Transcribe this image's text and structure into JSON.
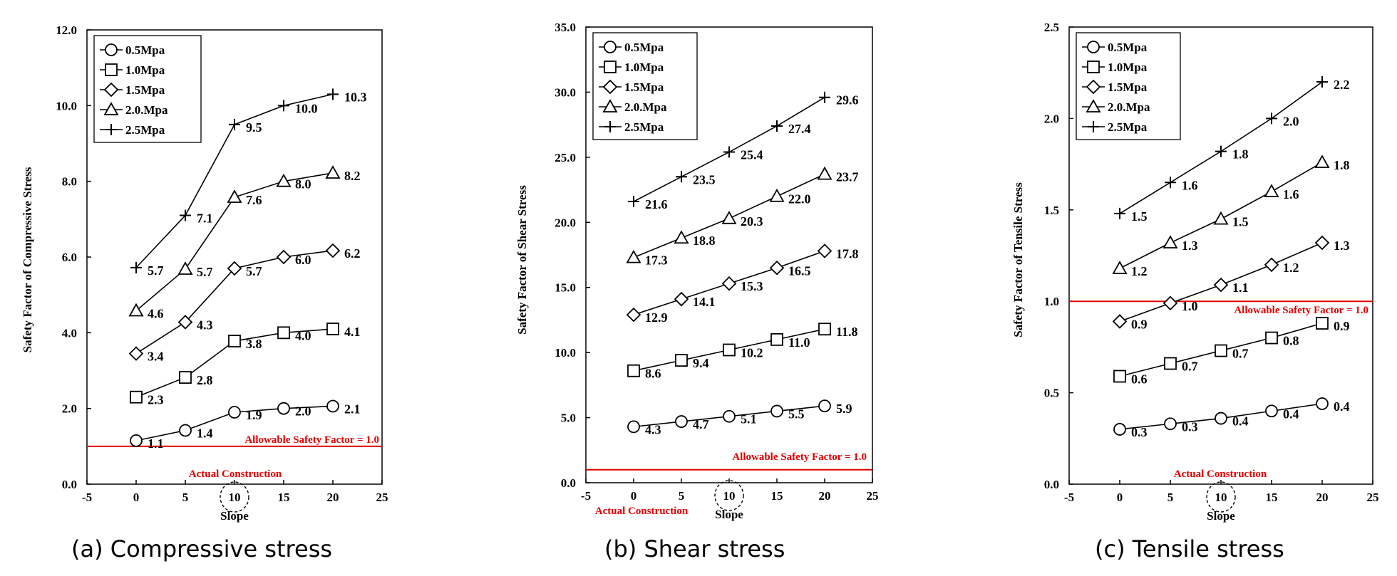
{
  "captions": [
    "(a) Compressive stress",
    "(b) Shear stress",
    "(c) Tensile stress"
  ],
  "chart_data": [
    {
      "type": "line",
      "title": "",
      "xlabel": "Slope",
      "ylabel": "Safety Factor of  Compressive Stress",
      "xlim": [
        -5,
        25
      ],
      "ylim": [
        0,
        12
      ],
      "xticks": [
        -5,
        0,
        5,
        10,
        15,
        20,
        25
      ],
      "xtick_labels": [
        "-5",
        "0",
        "5",
        "10",
        "15",
        "20",
        "25"
      ],
      "yticks": [
        0,
        2,
        4,
        6,
        8,
        10,
        12
      ],
      "ytick_labels": [
        "0.0",
        "2.0",
        "4.0",
        "6.0",
        "8.0",
        "10.0",
        "12.0"
      ],
      "x": [
        0,
        5,
        10,
        15,
        20
      ],
      "series": [
        {
          "name": "0.5Mpa",
          "marker": "circle",
          "values": [
            1.15,
            1.42,
            1.9,
            2.0,
            2.06
          ],
          "labels": [
            "1.1",
            "1.4",
            "1.9",
            "2.0",
            "2.1"
          ]
        },
        {
          "name": "1.0Mpa",
          "marker": "square",
          "values": [
            2.3,
            2.82,
            3.78,
            4.0,
            4.1
          ],
          "labels": [
            "2.3",
            "2.8",
            "3.8",
            "4.0",
            "4.1"
          ]
        },
        {
          "name": "1.5Mpa",
          "marker": "diamond",
          "values": [
            3.45,
            4.28,
            5.7,
            6.0,
            6.17
          ],
          "labels": [
            "3.4",
            "4.3",
            "5.7",
            "6.0",
            "6.2"
          ]
        },
        {
          "name": "2.0.Mpa",
          "marker": "triangle",
          "values": [
            4.58,
            5.68,
            7.58,
            8.0,
            8.22
          ],
          "labels": [
            "4.6",
            "5.7",
            "7.6",
            "8.0",
            "8.2"
          ]
        },
        {
          "name": "2.5Mpa",
          "marker": "plus",
          "values": [
            5.72,
            7.1,
            9.5,
            10.0,
            10.3
          ],
          "labels": [
            "5.7",
            "7.1",
            "9.5",
            "10.0",
            "10.3"
          ]
        }
      ],
      "allowable_line": {
        "value": 1.0,
        "label": "Allowable Safety Factor = 1.0"
      },
      "actual_construction": {
        "x": 10,
        "label": "Actual Construction"
      },
      "legend": "top-left"
    },
    {
      "type": "line",
      "title": "",
      "xlabel": "Slope",
      "ylabel": "Safety Factor of  Shear Stress",
      "xlim": [
        -5,
        25
      ],
      "ylim": [
        0,
        35
      ],
      "xticks": [
        -5,
        0,
        5,
        10,
        15,
        20,
        25
      ],
      "xtick_labels": [
        "-5",
        "0",
        "5",
        "10",
        "15",
        "20",
        "25"
      ],
      "yticks": [
        0,
        5,
        10,
        15,
        20,
        25,
        30,
        35
      ],
      "ytick_labels": [
        "0.0",
        "5.0",
        "10.0",
        "15.0",
        "20.0",
        "25.0",
        "30.0",
        "35.0"
      ],
      "x": [
        0,
        5,
        10,
        15,
        20
      ],
      "series": [
        {
          "name": "0.5Mpa",
          "marker": "circle",
          "values": [
            4.3,
            4.7,
            5.1,
            5.5,
            5.9
          ],
          "labels": [
            "4.3",
            "4.7",
            "5.1",
            "5.5",
            "5.9"
          ]
        },
        {
          "name": "1.0Mpa",
          "marker": "square",
          "values": [
            8.6,
            9.4,
            10.2,
            11.0,
            11.8
          ],
          "labels": [
            "8.6",
            "9.4",
            "10.2",
            "11.0",
            "11.8"
          ]
        },
        {
          "name": "1.5Mpa",
          "marker": "diamond",
          "values": [
            12.9,
            14.1,
            15.3,
            16.5,
            17.8
          ],
          "labels": [
            "12.9",
            "14.1",
            "15.3",
            "16.5",
            "17.8"
          ]
        },
        {
          "name": "2.0.Mpa",
          "marker": "triangle",
          "values": [
            17.3,
            18.8,
            20.3,
            22.0,
            23.7
          ],
          "labels": [
            "17.3",
            "18.8",
            "20.3",
            "22.0",
            "23.7"
          ]
        },
        {
          "name": "2.5Mpa",
          "marker": "plus",
          "values": [
            21.6,
            23.5,
            25.4,
            27.4,
            29.6
          ],
          "labels": [
            "21.6",
            "23.5",
            "25.4",
            "27.4",
            "29.6"
          ]
        }
      ],
      "allowable_line": {
        "value": 1.0,
        "label": "Allowable Safety Factor = 1.0"
      },
      "actual_construction": {
        "x": 10,
        "label": "Actual Construction"
      },
      "legend": "top-left"
    },
    {
      "type": "line",
      "title": "",
      "xlabel": "Slope",
      "ylabel": "Safety Factor of  Tensile Stress",
      "xlim": [
        -5,
        25
      ],
      "ylim": [
        0,
        2.5
      ],
      "xticks": [
        -5,
        0,
        5,
        10,
        15,
        20,
        25
      ],
      "xtick_labels": [
        "-5",
        "0",
        "5",
        "10",
        "15",
        "20",
        "25"
      ],
      "yticks": [
        0,
        0.5,
        1.0,
        1.5,
        2.0,
        2.5
      ],
      "ytick_labels": [
        "0.0",
        "0.5",
        "1.0",
        "1.5",
        "2.0",
        "2.5"
      ],
      "x": [
        0,
        5,
        10,
        15,
        20
      ],
      "series": [
        {
          "name": "0.5Mpa",
          "marker": "circle",
          "values": [
            0.3,
            0.33,
            0.36,
            0.4,
            0.44
          ],
          "labels": [
            "0.3",
            "0.3",
            "0.4",
            "0.4",
            "0.4"
          ]
        },
        {
          "name": "1.0Mpa",
          "marker": "square",
          "values": [
            0.59,
            0.66,
            0.73,
            0.8,
            0.88
          ],
          "labels": [
            "0.6",
            "0.7",
            "0.7",
            "0.8",
            "0.9"
          ]
        },
        {
          "name": "1.5Mpa",
          "marker": "diamond",
          "values": [
            0.89,
            0.99,
            1.09,
            1.2,
            1.32
          ],
          "labels": [
            "0.9",
            "1.0",
            "1.1",
            "1.2",
            "1.3"
          ]
        },
        {
          "name": "2.0.Mpa",
          "marker": "triangle",
          "values": [
            1.18,
            1.32,
            1.45,
            1.6,
            1.76
          ],
          "labels": [
            "1.2",
            "1.3",
            "1.5",
            "1.6",
            "1.8"
          ]
        },
        {
          "name": "2.5Mpa",
          "marker": "plus",
          "values": [
            1.48,
            1.65,
            1.82,
            2.0,
            2.2
          ],
          "labels": [
            "1.5",
            "1.6",
            "1.8",
            "2.0",
            "2.2"
          ]
        }
      ],
      "allowable_line": {
        "value": 1.0,
        "label": "Allowable Safety Factor = 1.0"
      },
      "actual_construction": {
        "x": 10,
        "label": "Actual Construction"
      },
      "legend": "top-left"
    }
  ]
}
